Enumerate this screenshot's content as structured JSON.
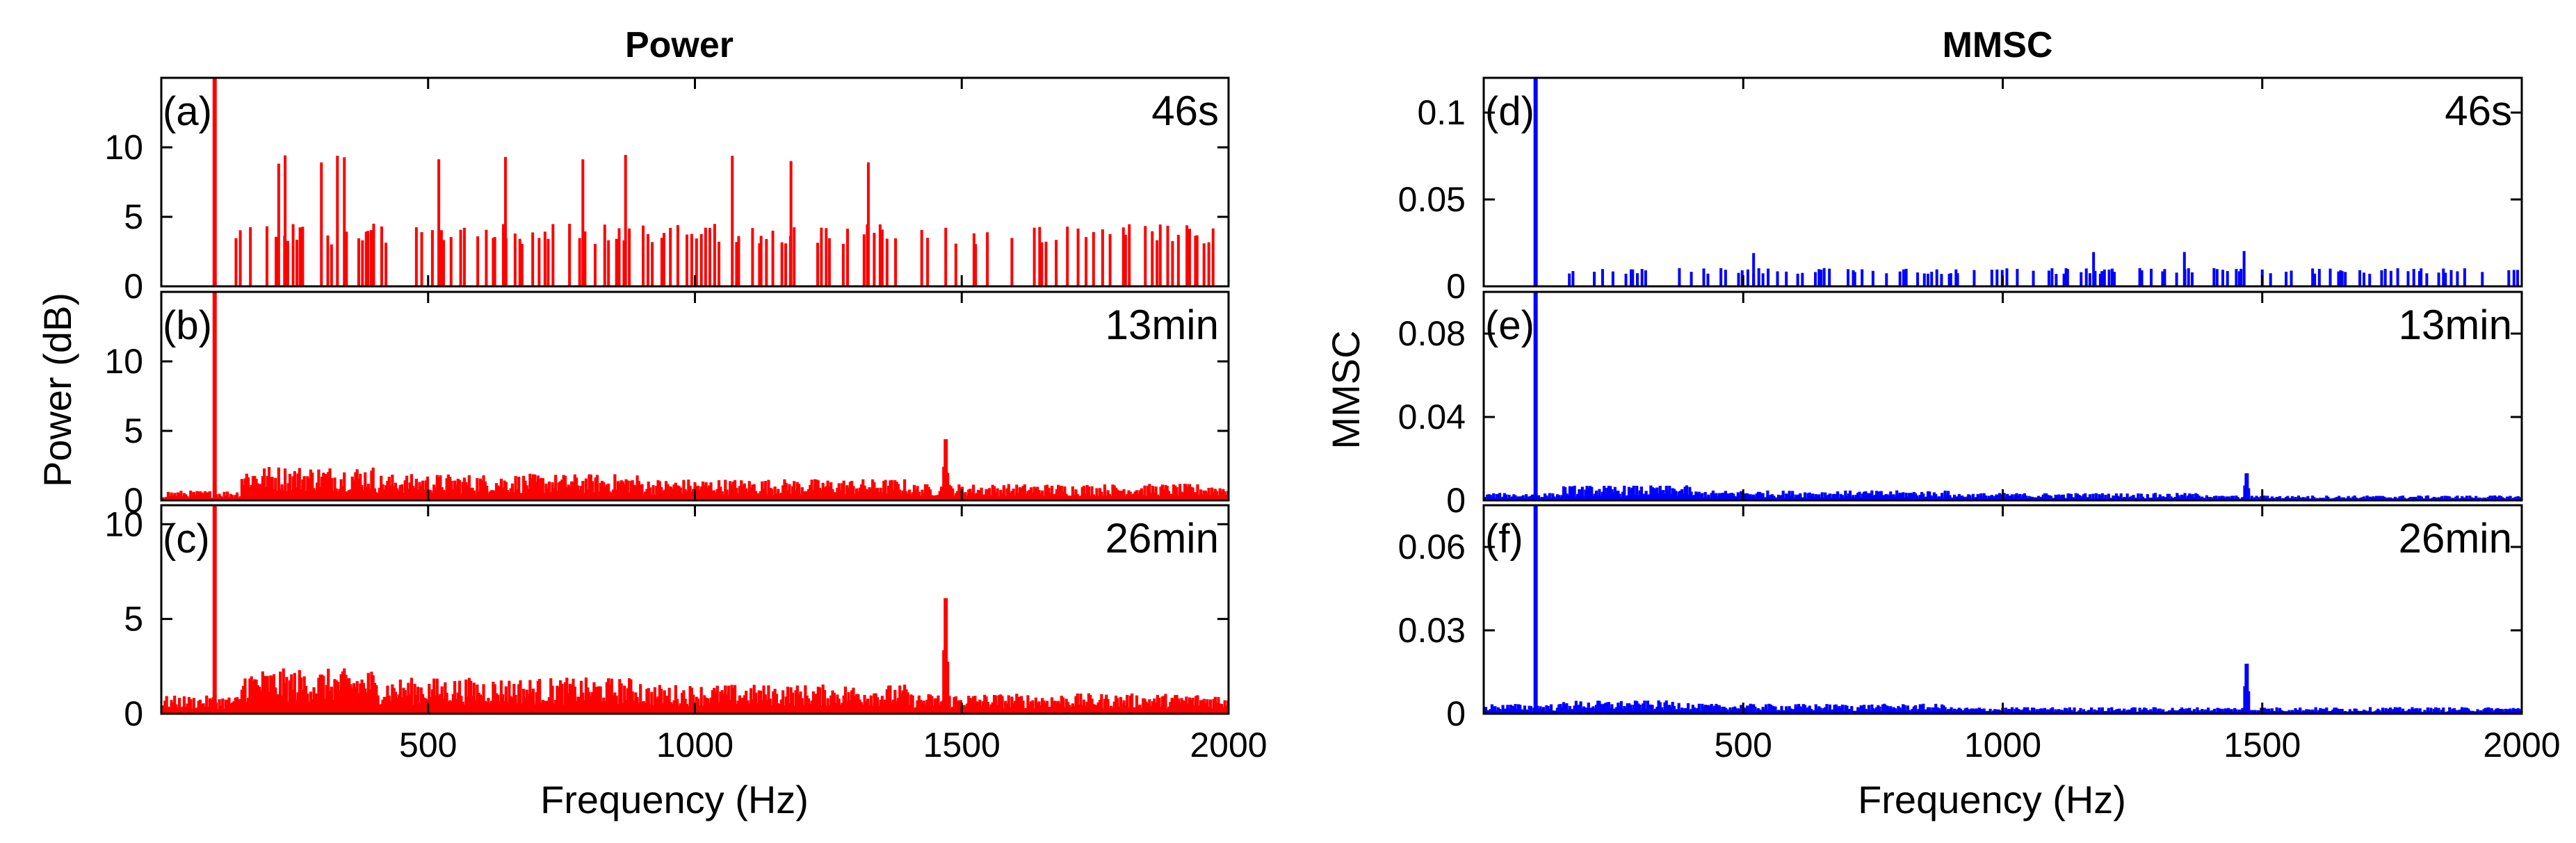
{
  "figure": {
    "left_title": "Power",
    "right_title": "MMSC",
    "left_ylabel": "Power (dB)",
    "right_ylabel": "MMSC",
    "xlabel": "Frequency (Hz)"
  },
  "chart_data": [
    {
      "id": "a",
      "panel_label": "(a)",
      "time_label": "46s",
      "type": "bar",
      "color": "#ff0000",
      "style": "sparse",
      "xlim": [
        0,
        2000
      ],
      "ylim": [
        0,
        15
      ],
      "xticks": [
        500,
        1000,
        1500,
        2000
      ],
      "xtick_labels": [
        "500",
        "1000",
        "1500",
        "2000"
      ],
      "yticks": [
        0,
        5,
        10
      ],
      "ytick_labels": [
        "0",
        "5",
        "10"
      ],
      "peaks": [
        {
          "x": 100,
          "y": 15
        }
      ],
      "background_level": 4.3,
      "tall_level": 9.2,
      "tall_bars_x": [
        220,
        232,
        300,
        330,
        343,
        520,
        645,
        790,
        870,
        1070,
        1180,
        1325
      ]
    },
    {
      "id": "b",
      "panel_label": "(b)",
      "time_label": "13min",
      "type": "bar",
      "color": "#ff0000",
      "style": "dense",
      "xlim": [
        0,
        2000
      ],
      "ylim": [
        0,
        15
      ],
      "xticks": [
        500,
        1000,
        1500,
        2000
      ],
      "xtick_labels": [
        "500",
        "1000",
        "1500",
        "2000"
      ],
      "yticks": [
        0,
        5,
        10
      ],
      "ytick_labels": [
        "0",
        "5",
        "10"
      ],
      "peaks": [
        {
          "x": 100,
          "y": 15
        },
        {
          "x": 1470,
          "y": 4.4
        }
      ],
      "noise_levels": [
        {
          "from": 0,
          "to": 150,
          "level": 0.6
        },
        {
          "from": 150,
          "to": 400,
          "level": 2.1
        },
        {
          "from": 400,
          "to": 900,
          "level": 1.6
        },
        {
          "from": 900,
          "to": 1400,
          "level": 1.3
        },
        {
          "from": 1400,
          "to": 2000,
          "level": 1.0
        }
      ]
    },
    {
      "id": "c",
      "panel_label": "(c)",
      "time_label": "26min",
      "type": "bar",
      "color": "#ff0000",
      "style": "dense",
      "xlim": [
        0,
        2000
      ],
      "ylim": [
        0,
        11
      ],
      "xticks": [
        500,
        1000,
        1500,
        2000
      ],
      "xtick_labels": [
        "500",
        "1000",
        "1500",
        "2000"
      ],
      "yticks": [
        0,
        5,
        10
      ],
      "ytick_labels": [
        "0",
        "5",
        "10"
      ],
      "peaks": [
        {
          "x": 100,
          "y": 11
        },
        {
          "x": 1470,
          "y": 6.1
        }
      ],
      "noise_levels": [
        {
          "from": 0,
          "to": 150,
          "level": 0.8
        },
        {
          "from": 150,
          "to": 400,
          "level": 2.0
        },
        {
          "from": 400,
          "to": 900,
          "level": 1.6
        },
        {
          "from": 900,
          "to": 1400,
          "level": 1.3
        },
        {
          "from": 1400,
          "to": 2000,
          "level": 0.9
        }
      ]
    },
    {
      "id": "d",
      "panel_label": "(d)",
      "time_label": "46s",
      "type": "bar",
      "color": "#0000ff",
      "style": "sparse",
      "xlim": [
        0,
        2000
      ],
      "ylim": [
        0,
        0.12
      ],
      "xticks": [
        500,
        1000,
        1500,
        2000
      ],
      "xtick_labels": [
        "500",
        "1000",
        "1500",
        "2000"
      ],
      "yticks": [
        0,
        0.05,
        0.1
      ],
      "ytick_labels": [
        "0",
        "0.05",
        "0.1"
      ],
      "peaks": [
        {
          "x": 100,
          "y": 0.12
        }
      ],
      "background_level": 0.01,
      "tall_level": 0.02,
      "tall_bars_x": [
        520,
        1175,
        1350,
        1465
      ]
    },
    {
      "id": "e",
      "panel_label": "(e)",
      "time_label": "13min",
      "type": "bar",
      "color": "#0000ff",
      "style": "dense",
      "xlim": [
        0,
        2000
      ],
      "ylim": [
        0,
        0.1
      ],
      "xticks": [
        500,
        1000,
        1500,
        2000
      ],
      "xtick_labels": [
        "500",
        "1000",
        "1500",
        "2000"
      ],
      "yticks": [
        0,
        0.04,
        0.08
      ],
      "ytick_labels": [
        "0",
        "0.04",
        "0.08"
      ],
      "peaks": [
        {
          "x": 100,
          "y": 0.1
        },
        {
          "x": 1470,
          "y": 0.013
        }
      ],
      "noise_levels": [
        {
          "from": 0,
          "to": 150,
          "level": 0.003
        },
        {
          "from": 150,
          "to": 400,
          "level": 0.006
        },
        {
          "from": 400,
          "to": 900,
          "level": 0.004
        },
        {
          "from": 900,
          "to": 1400,
          "level": 0.003
        },
        {
          "from": 1400,
          "to": 2000,
          "level": 0.002
        }
      ]
    },
    {
      "id": "f",
      "panel_label": "(f)",
      "time_label": "26min",
      "type": "bar",
      "color": "#0000ff",
      "style": "dense",
      "xlim": [
        0,
        2000
      ],
      "ylim": [
        0,
        0.075
      ],
      "xticks": [
        500,
        1000,
        1500,
        2000
      ],
      "xtick_labels": [
        "500",
        "1000",
        "1500",
        "2000"
      ],
      "yticks": [
        0,
        0.03,
        0.06
      ],
      "ytick_labels": [
        "0",
        "0.03",
        "0.06"
      ],
      "peaks": [
        {
          "x": 100,
          "y": 0.075
        },
        {
          "x": 1470,
          "y": 0.018
        }
      ],
      "noise_levels": [
        {
          "from": 0,
          "to": 150,
          "level": 0.003
        },
        {
          "from": 150,
          "to": 400,
          "level": 0.004
        },
        {
          "from": 400,
          "to": 900,
          "level": 0.003
        },
        {
          "from": 900,
          "to": 1400,
          "level": 0.002
        },
        {
          "from": 1400,
          "to": 2000,
          "level": 0.002
        }
      ]
    }
  ]
}
